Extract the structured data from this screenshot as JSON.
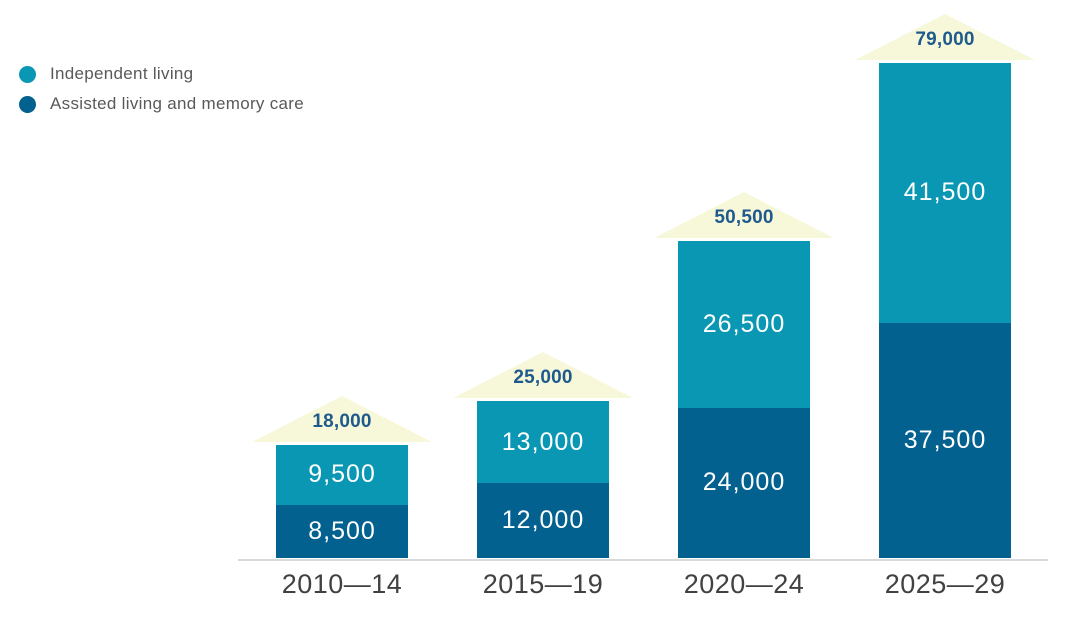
{
  "legend": {
    "items": [
      {
        "label": "Independent living",
        "color": "#0997B4"
      },
      {
        "label": "Assisted living and memory care",
        "color": "#02618F"
      }
    ]
  },
  "chart_data": {
    "type": "bar",
    "stacked": true,
    "categories": [
      "2010—14",
      "2015—19",
      "2020—24",
      "2025—29"
    ],
    "series": [
      {
        "name": "Assisted living and memory care",
        "position": "bottom",
        "color": "#02618F",
        "values": [
          8500,
          12000,
          24000,
          37500
        ],
        "labels": [
          "8,500",
          "12,000",
          "24,000",
          "37,500"
        ]
      },
      {
        "name": "Independent living",
        "position": "top",
        "color": "#0997B4",
        "values": [
          9500,
          13000,
          26500,
          41500
        ],
        "labels": [
          "9,500",
          "13,000",
          "26,500",
          "41,500"
        ]
      }
    ],
    "totals": {
      "values": [
        18000,
        25000,
        50500,
        79000
      ],
      "labels": [
        "18,000",
        "25,000",
        "50,500",
        "79,000"
      ],
      "marker": "roof-arrow",
      "marker_color": "#F7F8DA",
      "label_color": "#1E5A8C"
    },
    "ylim": [
      0,
      80000
    ],
    "grid": false,
    "legend_position": "top-left",
    "axis_line_color": "#D9DADB",
    "xlabel_color": "#414042",
    "value_label_color": "#FFFFFF"
  }
}
